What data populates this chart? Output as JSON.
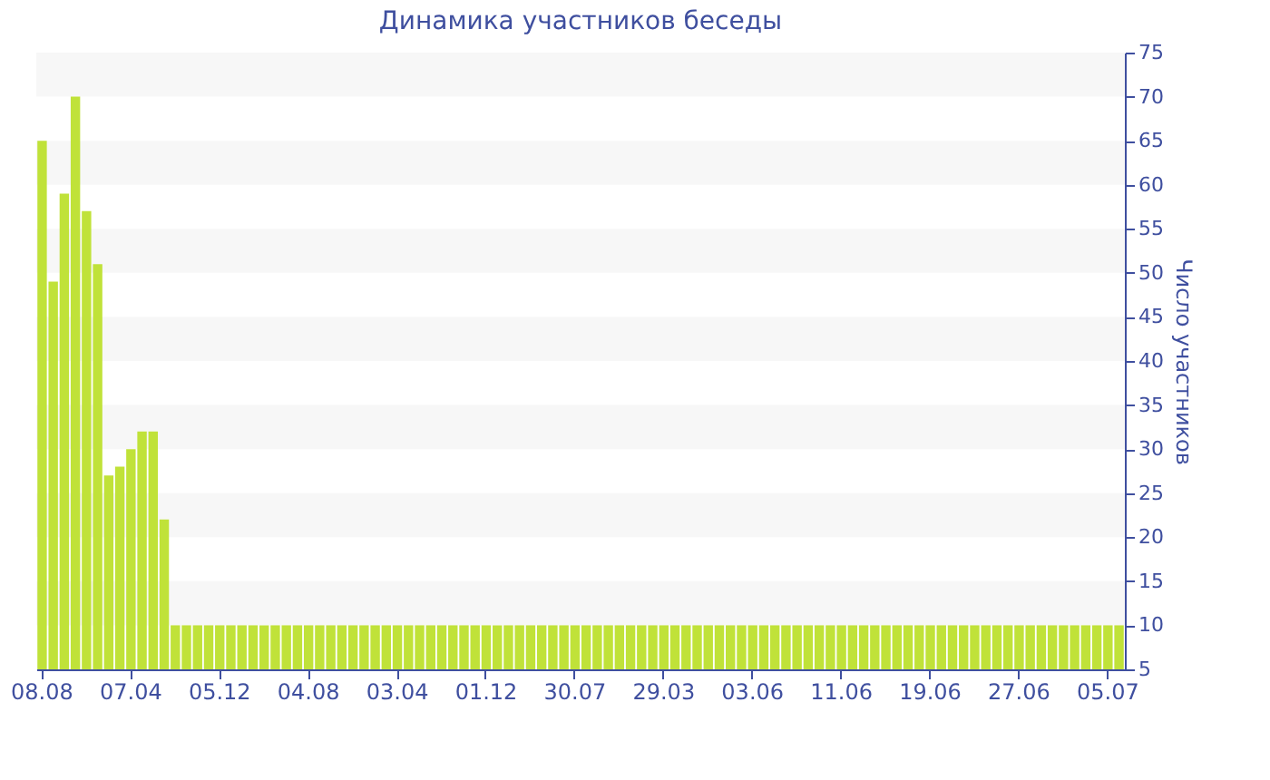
{
  "chart_data": {
    "type": "bar",
    "title": "Динамика участников беседы",
    "ylabel": "Число участников",
    "categories": [
      "08.08",
      null,
      null,
      null,
      null,
      null,
      null,
      null,
      "07.04",
      null,
      null,
      null,
      null,
      null,
      null,
      null,
      "05.12",
      null,
      null,
      null,
      null,
      null,
      null,
      null,
      "04.08",
      null,
      null,
      null,
      null,
      null,
      null,
      null,
      "03.04",
      null,
      null,
      null,
      null,
      null,
      null,
      null,
      "01.12",
      null,
      null,
      null,
      null,
      null,
      null,
      null,
      "30.07",
      null,
      null,
      null,
      null,
      null,
      null,
      null,
      "29.03",
      null,
      null,
      null,
      null,
      null,
      null,
      null,
      "03.06",
      null,
      null,
      null,
      null,
      null,
      null,
      null,
      "11.06",
      null,
      null,
      null,
      null,
      null,
      null,
      null,
      "19.06",
      null,
      null,
      null,
      null,
      null,
      null,
      null,
      "27.06",
      null,
      null,
      null,
      null,
      null,
      null,
      null,
      "05.07",
      null
    ],
    "values": [
      65,
      49,
      59,
      70,
      57,
      51,
      27,
      28,
      30,
      32,
      32,
      22,
      10,
      10,
      10,
      10,
      10,
      10,
      10,
      10,
      10,
      10,
      10,
      10,
      10,
      10,
      10,
      10,
      10,
      10,
      10,
      10,
      10,
      10,
      10,
      10,
      10,
      10,
      10,
      10,
      10,
      10,
      10,
      10,
      10,
      10,
      10,
      10,
      10,
      10,
      10,
      10,
      10,
      10,
      10,
      10,
      10,
      10,
      10,
      10,
      10,
      10,
      10,
      10,
      10,
      10,
      10,
      10,
      10,
      10,
      10,
      10,
      10,
      10,
      10,
      10,
      10,
      10,
      10,
      10,
      10,
      10,
      10,
      10,
      10,
      10,
      10,
      10,
      10,
      10,
      10,
      10,
      10,
      10,
      10,
      10,
      10,
      10
    ],
    "color": "#bde02e",
    "ylim": [
      5,
      75
    ],
    "yticks": [
      5,
      10,
      15,
      20,
      25,
      30,
      35,
      40,
      45,
      50,
      55,
      60,
      65,
      70,
      75
    ],
    "bands": [
      {
        "axis": "y",
        "from": 10,
        "to": 15,
        "color": "#f7f7f7"
      },
      {
        "axis": "y",
        "from": 20,
        "to": 25,
        "color": "#f7f7f7"
      },
      {
        "axis": "y",
        "from": 30,
        "to": 35,
        "color": "#f7f7f7"
      },
      {
        "axis": "y",
        "from": 40,
        "to": 45,
        "color": "#f7f7f7"
      },
      {
        "axis": "y",
        "from": 50,
        "to": 55,
        "color": "#f7f7f7"
      },
      {
        "axis": "y",
        "from": 60,
        "to": 65,
        "color": "#f7f7f7"
      },
      {
        "axis": "y",
        "from": 70,
        "to": 75,
        "color": "#f7f7f7"
      }
    ],
    "grid": false
  }
}
